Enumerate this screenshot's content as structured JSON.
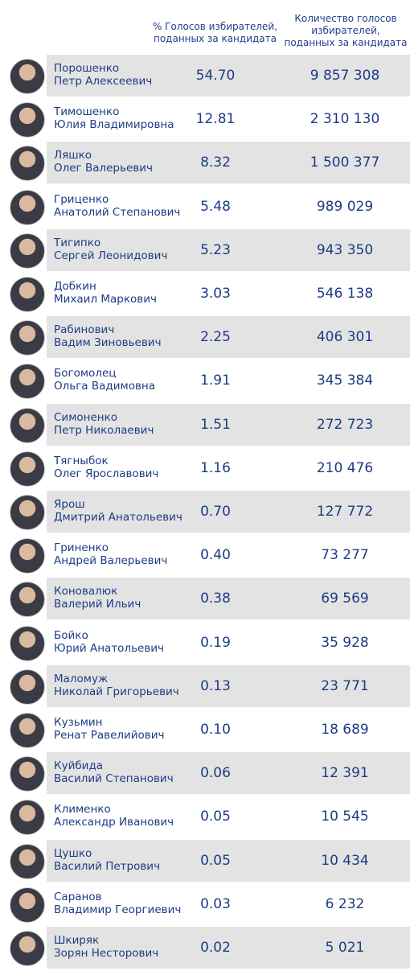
{
  "header": {
    "pct_lines": [
      "% Голосов избирателей,",
      "поданных за кандидата"
    ],
    "votes_lines": [
      "Количество голосов",
      "избирателей,",
      "поданных за кандидата"
    ]
  },
  "table": {
    "rows": [
      [
        [
          "Порошенко",
          "Петр Алексеевич"
        ],
        "54.70",
        "9 857 308"
      ],
      [
        [
          "Тимошенко",
          "Юлия Владимировна"
        ],
        "12.81",
        "2 310 130"
      ],
      [
        [
          "Ляшко",
          "Олег Валерьевич"
        ],
        "8.32",
        "1 500 377"
      ],
      [
        [
          "Гриценко",
          "Анатолий Степанович"
        ],
        "5.48",
        "989 029"
      ],
      [
        [
          "Тигипко",
          "Сергей Леонидович"
        ],
        "5.23",
        "943 350"
      ],
      [
        [
          "Добкин",
          "Михаил Маркович"
        ],
        "3.03",
        "546 138"
      ],
      [
        [
          "Рабинович",
          "Вадим Зиновьевич"
        ],
        "2.25",
        "406 301"
      ],
      [
        [
          "Богомолец",
          "Ольга Вадимовна"
        ],
        "1.91",
        "345 384"
      ],
      [
        [
          "Симоненко",
          "Петр Николаевич"
        ],
        "1.51",
        "272 723"
      ],
      [
        [
          "Тягныбок",
          "Олег Ярославович"
        ],
        "1.16",
        "210 476"
      ],
      [
        [
          "Ярош",
          "Дмитрий Анатольевич"
        ],
        "0.70",
        "127 772"
      ],
      [
        [
          "Гриненко",
          "Андрей Валерьевич"
        ],
        "0.40",
        "73 277"
      ],
      [
        [
          "Коновалюк",
          "Валерий Ильич"
        ],
        "0.38",
        "69 569"
      ],
      [
        [
          "Бойко",
          "Юрий Анатольевич"
        ],
        "0.19",
        "35 928"
      ],
      [
        [
          "Маломуж",
          "Николай Григорьевич"
        ],
        "0.13",
        "23 771"
      ],
      [
        [
          "Кузьмин",
          "Ренат Равелийович"
        ],
        "0.10",
        "18 689"
      ],
      [
        [
          "Куйбида",
          "Василий Степанович"
        ],
        "0.06",
        "12 391"
      ],
      [
        [
          "Клименко",
          "Александр Иванович"
        ],
        "0.05",
        "10 545"
      ],
      [
        [
          "Цушко",
          "Василий Петрович"
        ],
        "0.05",
        "10 434"
      ],
      [
        [
          "Саранов",
          "Владимир Георгиевич"
        ],
        "0.03",
        "6 232"
      ],
      [
        [
          "Шкиряк",
          "Зорян Несторович"
        ],
        "0.02",
        "5 021"
      ]
    ]
  }
}
